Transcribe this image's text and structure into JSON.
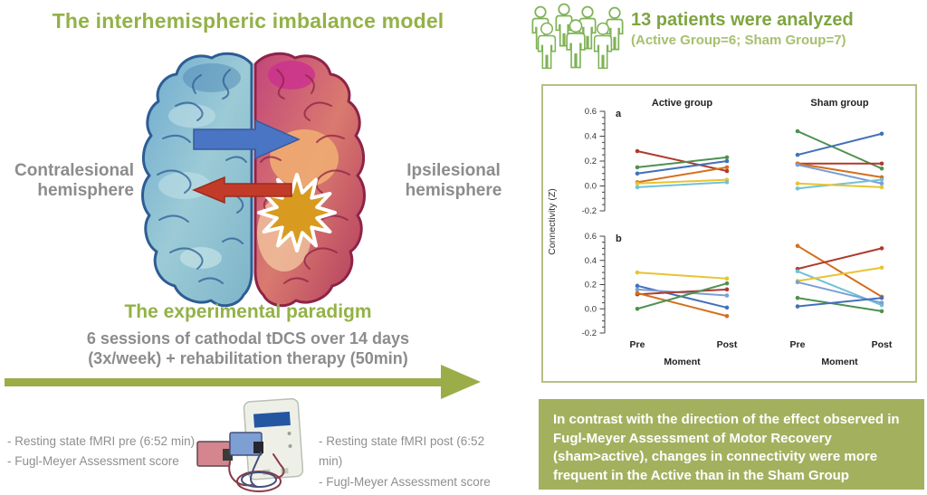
{
  "model_section": {
    "title": "The interhemispheric imbalance model",
    "left_label_line1": "Contralesional",
    "left_label_line2": "hemisphere",
    "right_label_line1": "Ipsilesional",
    "right_label_line2": "hemisphere"
  },
  "paradigm_section": {
    "title": "The experimental paradigm",
    "description_line1": "6 sessions of cathodal tDCS over 14 days",
    "description_line2": "(3x/week) + rehabilitation therapy (50min)",
    "pre_measures": [
      "- Resting state fMRI pre (6:52 min)",
      "- Fugl-Meyer Assessment score"
    ],
    "post_measures": [
      "- Resting state fMRI post (6:52 min)",
      "- Fugl-Meyer Assessment score"
    ]
  },
  "patients_section": {
    "headline": "13 patients were analyzed",
    "subline": "(Active Group=6; Sham Group=7)"
  },
  "conclusion_box": {
    "text": "In contrast with the direction of the effect observed in Fugl-Meyer Assessment of Motor Recovery (sham>active), changes in connectivity were more frequent in the Active than in the Sham Group"
  },
  "colors": {
    "accent_green": "#93b247",
    "box_green": "#a3b15f",
    "arrow_green": "#9aad48",
    "gray_text": "#8c8c8c",
    "chart_border": "#b9bd87"
  },
  "chart_data": {
    "type": "line",
    "ylabel": "Connectivity (Z)",
    "xlabel": "Moment",
    "x_categories": [
      "Pre",
      "Post"
    ],
    "ylim": [
      -0.2,
      0.6
    ],
    "ytick_labels": [
      "0.6",
      "0.4",
      "0.2",
      "0.0",
      "-0.2"
    ],
    "grid": false,
    "legend": "none",
    "panels": [
      {
        "row": "a",
        "col": "Active group",
        "series": [
          {
            "color": "#b03a2e",
            "values": [
              0.28,
              0.12
            ]
          },
          {
            "color": "#4e9150",
            "values": [
              0.15,
              0.23
            ]
          },
          {
            "color": "#4271b8",
            "values": [
              0.1,
              0.2
            ]
          },
          {
            "color": "#d4701f",
            "values": [
              0.03,
              0.15
            ]
          },
          {
            "color": "#e8c431",
            "values": [
              0.02,
              0.05
            ]
          },
          {
            "color": "#72c2d8",
            "values": [
              -0.01,
              0.03
            ]
          }
        ]
      },
      {
        "row": "a",
        "col": "Sham group",
        "series": [
          {
            "color": "#4e9150",
            "values": [
              0.44,
              0.14
            ]
          },
          {
            "color": "#4271b8",
            "values": [
              0.25,
              0.42
            ]
          },
          {
            "color": "#b03a2e",
            "values": [
              0.18,
              0.18
            ]
          },
          {
            "color": "#d4701f",
            "values": [
              0.18,
              0.07
            ]
          },
          {
            "color": "#7b9fd4",
            "values": [
              0.17,
              0.02
            ]
          },
          {
            "color": "#72c2d8",
            "values": [
              -0.02,
              0.05
            ]
          },
          {
            "color": "#e8c431",
            "values": [
              0.02,
              -0.01
            ]
          }
        ]
      },
      {
        "row": "b",
        "col": "Active group",
        "series": [
          {
            "color": "#e8c431",
            "values": [
              0.3,
              0.25
            ]
          },
          {
            "color": "#4271b8",
            "values": [
              0.19,
              0.01
            ]
          },
          {
            "color": "#7b9fd4",
            "values": [
              0.16,
              0.11
            ]
          },
          {
            "color": "#b03a2e",
            "values": [
              0.12,
              0.16
            ]
          },
          {
            "color": "#d4701f",
            "values": [
              0.13,
              -0.06
            ]
          },
          {
            "color": "#4e9150",
            "values": [
              0.0,
              0.21
            ]
          }
        ]
      },
      {
        "row": "b",
        "col": "Sham group",
        "series": [
          {
            "color": "#d4701f",
            "values": [
              0.52,
              0.1
            ]
          },
          {
            "color": "#b03a2e",
            "values": [
              0.33,
              0.5
            ]
          },
          {
            "color": "#72c2d8",
            "values": [
              0.31,
              0.03
            ]
          },
          {
            "color": "#e8c431",
            "values": [
              0.23,
              0.34
            ]
          },
          {
            "color": "#7b9fd4",
            "values": [
              0.22,
              0.05
            ]
          },
          {
            "color": "#4e9150",
            "values": [
              0.09,
              -0.02
            ]
          },
          {
            "color": "#4271b8",
            "values": [
              0.02,
              0.09
            ]
          }
        ]
      }
    ]
  }
}
